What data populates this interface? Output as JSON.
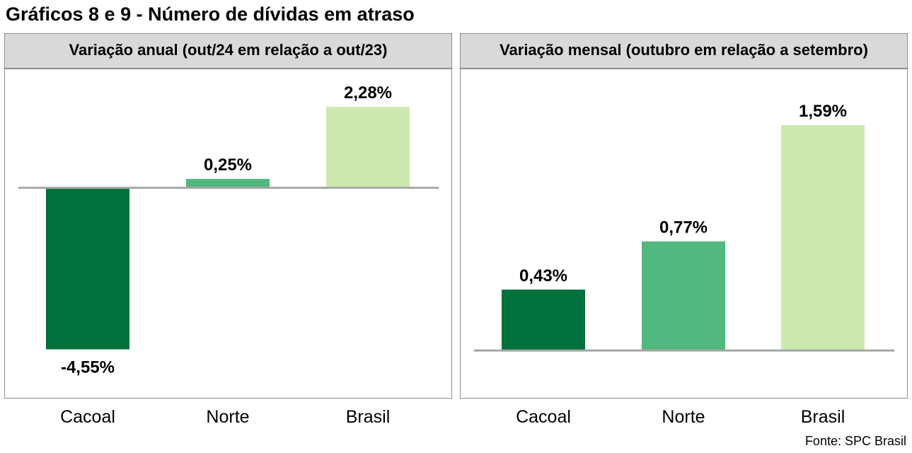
{
  "title": "Gráficos 8 e 9 - Número de dívidas em atraso",
  "source": "Fonte: SPC Brasil",
  "colors": {
    "Cacoal": "#00703c",
    "Norte": "#51b880",
    "Brasil": "#cbe9ae"
  },
  "chart_data": [
    {
      "type": "bar",
      "title": "Variação anual (out/24 em relação a out/23)",
      "categories": [
        "Cacoal",
        "Norte",
        "Brasil"
      ],
      "values": [
        -4.55,
        0.25,
        2.28
      ],
      "value_labels": [
        "-4,55%",
        "0,25%",
        "2,28%"
      ],
      "xlabel": "",
      "ylabel": "",
      "ylim": [
        -5.2,
        2.9
      ],
      "grid": false,
      "legend": "none"
    },
    {
      "type": "bar",
      "title": "Variação mensal (outubro em relação a setembro)",
      "categories": [
        "Cacoal",
        "Norte",
        "Brasil"
      ],
      "values": [
        0.43,
        0.77,
        1.59
      ],
      "value_labels": [
        "0,43%",
        "0,77%",
        "1,59%"
      ],
      "xlabel": "",
      "ylabel": "",
      "ylim": [
        0,
        1.85
      ],
      "grid": false,
      "legend": "none"
    }
  ]
}
